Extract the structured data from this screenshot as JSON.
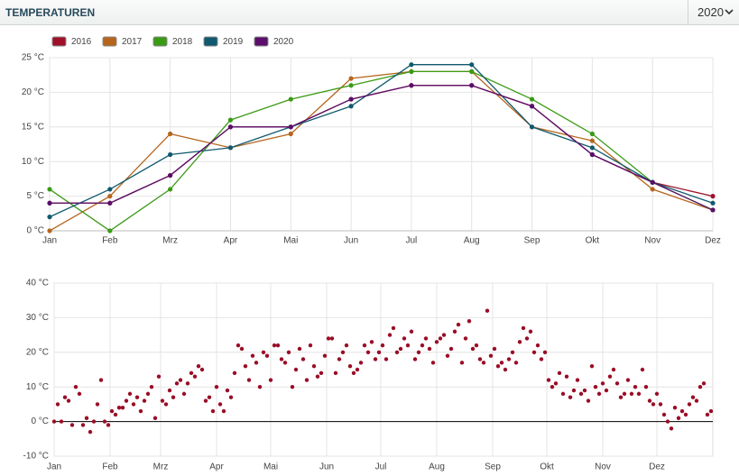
{
  "header": {
    "title": "TEMPERATUREN",
    "year": "2020"
  },
  "chart_data": [
    {
      "type": "line",
      "categories": [
        "Jan",
        "Feb",
        "Mrz",
        "Apr",
        "Mai",
        "Jun",
        "Jul",
        "Aug",
        "Sep",
        "Okt",
        "Nov",
        "Dez"
      ],
      "series": [
        {
          "name": "2016",
          "color": "#a0102a",
          "values": [
            4,
            4,
            8,
            15,
            15,
            19,
            21,
            21,
            18,
            11,
            7,
            5
          ]
        },
        {
          "name": "2017",
          "color": "#b5651d",
          "values": [
            0,
            5,
            14,
            12,
            14,
            22,
            23,
            23,
            15,
            13,
            6,
            3
          ]
        },
        {
          "name": "2018",
          "color": "#3a9a14",
          "values": [
            6,
            0,
            6,
            16,
            19,
            21,
            23,
            23,
            19,
            14,
            7,
            3
          ]
        },
        {
          "name": "2019",
          "color": "#10596e",
          "values": [
            2,
            6,
            11,
            12,
            15,
            18,
            24,
            24,
            15,
            12,
            7,
            4
          ]
        },
        {
          "name": "2020",
          "color": "#5a0f6a",
          "values": [
            4,
            4,
            8,
            15,
            15,
            19,
            21,
            21,
            18,
            11,
            7,
            3
          ]
        }
      ],
      "ylim": [
        0,
        25
      ],
      "yticks": [
        {
          "value": 0,
          "label": "0 °C"
        },
        {
          "value": 5,
          "label": "5 °C"
        },
        {
          "value": 10,
          "label": "10 °C"
        },
        {
          "value": 15,
          "label": "15 °C"
        },
        {
          "value": 20,
          "label": "20 °C"
        },
        {
          "value": 25,
          "label": "25 °C"
        }
      ],
      "grid": true,
      "legend": "top-left"
    },
    {
      "type": "scatter",
      "color": "#9a0d26",
      "x": [
        1,
        3,
        5,
        7,
        9,
        11,
        13,
        15,
        17,
        19,
        21,
        23,
        25,
        27,
        29,
        31,
        33,
        35,
        37,
        39,
        41,
        43,
        45,
        47,
        49,
        51,
        53,
        55,
        57,
        59,
        61,
        63,
        65,
        67,
        69,
        71,
        73,
        75,
        77,
        79,
        81,
        83,
        85,
        87,
        89,
        91,
        93,
        95,
        97,
        99,
        101,
        103,
        105,
        107,
        109,
        111,
        113,
        115,
        117,
        119,
        121,
        123,
        125,
        127,
        129,
        131,
        133,
        135,
        137,
        139,
        141,
        143,
        145,
        147,
        149,
        151,
        153,
        155,
        157,
        159,
        161,
        163,
        165,
        167,
        169,
        171,
        173,
        175,
        177,
        179,
        181,
        183,
        185,
        187,
        189,
        191,
        193,
        195,
        197,
        199,
        201,
        203,
        205,
        207,
        209,
        211,
        213,
        215,
        217,
        219,
        221,
        223,
        225,
        227,
        229,
        231,
        233,
        235,
        237,
        239,
        241,
        243,
        245,
        247,
        249,
        251,
        253,
        255,
        257,
        259,
        261,
        263,
        265,
        267,
        269,
        271,
        273,
        275,
        277,
        279,
        281,
        283,
        285,
        287,
        289,
        291,
        293,
        295,
        297,
        299,
        301,
        303,
        305,
        307,
        309,
        311,
        313,
        315,
        317,
        319,
        321,
        323,
        325,
        327,
        329,
        331,
        333,
        335,
        337,
        339,
        341,
        343,
        345,
        347,
        349,
        351,
        353,
        355,
        357,
        359,
        361,
        363,
        365
      ],
      "values": [
        0,
        5,
        0,
        7,
        6,
        -1,
        10,
        8,
        -1,
        1,
        -3,
        0,
        5,
        12,
        0,
        -1,
        3,
        2,
        4,
        4,
        6,
        8,
        5,
        7,
        3,
        6,
        8,
        10,
        1,
        13,
        6,
        5,
        9,
        7,
        11,
        12,
        8,
        11,
        14,
        13,
        16,
        15,
        6,
        7,
        3,
        10,
        5,
        3,
        9,
        7,
        14,
        22,
        21,
        16,
        12,
        19,
        17,
        10,
        20,
        19,
        12,
        22,
        22,
        18,
        17,
        20,
        10,
        15,
        21,
        18,
        12,
        22,
        16,
        13,
        14,
        19,
        24,
        24,
        14,
        18,
        20,
        22,
        16,
        14,
        15,
        17,
        22,
        20,
        23,
        18,
        20,
        22,
        18,
        25,
        27,
        20,
        21,
        24,
        22,
        26,
        18,
        20,
        22,
        24,
        21,
        17,
        23,
        24,
        25,
        19,
        21,
        26,
        28,
        17,
        24,
        29,
        21,
        22,
        18,
        17,
        32,
        19,
        21,
        16,
        17,
        15,
        18,
        20,
        17,
        23,
        27,
        24,
        26,
        20,
        22,
        18,
        20,
        12,
        10,
        11,
        14,
        8,
        13,
        7,
        9,
        12,
        8,
        9,
        6,
        16,
        10,
        8,
        11,
        9,
        13,
        15,
        11,
        7,
        8,
        12,
        8,
        10,
        8,
        15,
        10,
        6,
        5,
        8,
        5,
        2,
        0,
        -2,
        4,
        1,
        3,
        2,
        5,
        7,
        6,
        10,
        11,
        2,
        3
      ],
      "xlim": [
        1,
        366
      ],
      "xticks": [
        {
          "value": 1,
          "label": "Jan"
        },
        {
          "value": 32,
          "label": "Feb"
        },
        {
          "value": 60,
          "label": "Mrz"
        },
        {
          "value": 91,
          "label": "Apr"
        },
        {
          "value": 121,
          "label": "Mai"
        },
        {
          "value": 152,
          "label": "Jun"
        },
        {
          "value": 182,
          "label": "Jul"
        },
        {
          "value": 213,
          "label": "Aug"
        },
        {
          "value": 244,
          "label": "Sep"
        },
        {
          "value": 274,
          "label": "Okt"
        },
        {
          "value": 305,
          "label": "Nov"
        },
        {
          "value": 335,
          "label": "Dez"
        }
      ],
      "ylim": [
        -10,
        40
      ],
      "yticks": [
        {
          "value": -10,
          "label": "-10 °C"
        },
        {
          "value": 0,
          "label": "0 °C"
        },
        {
          "value": 10,
          "label": "10 °C"
        },
        {
          "value": 20,
          "label": "20 °C"
        },
        {
          "value": 30,
          "label": "30 °C"
        },
        {
          "value": 40,
          "label": "40 °C"
        }
      ],
      "grid": true
    }
  ]
}
